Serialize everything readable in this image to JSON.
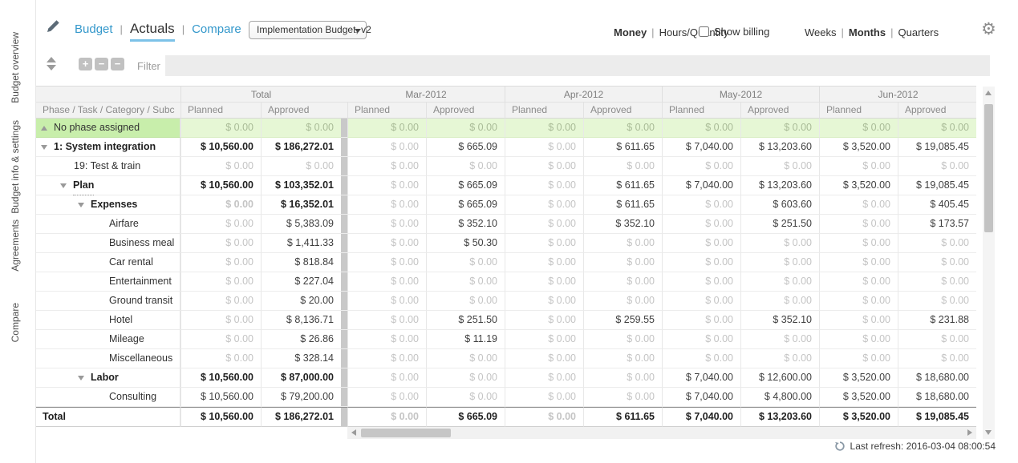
{
  "sidebar": {
    "items": [
      {
        "label": "Budget overview"
      },
      {
        "label": "Budget info & settings"
      },
      {
        "label": "Agreements"
      },
      {
        "label": "Compare"
      }
    ]
  },
  "topbar": {
    "separator": "|",
    "tabs": [
      {
        "label": "Budget",
        "active": false
      },
      {
        "label": "Actuals",
        "active": true
      },
      {
        "label": "Compare",
        "active": false
      }
    ],
    "budget_select": {
      "value": "Implementation Budget, v2"
    },
    "unit_toggle": [
      {
        "label": "Money",
        "active": true
      },
      {
        "label": "Hours/Quantity",
        "active": false
      }
    ],
    "show_billing": {
      "label": "Show billing",
      "checked": false
    },
    "period_toggle": [
      {
        "label": "Weeks",
        "active": false
      },
      {
        "label": "Months",
        "active": true
      },
      {
        "label": "Quarters",
        "active": false
      }
    ]
  },
  "toolbar": {
    "expand_buttons": [
      "+",
      "−",
      "−"
    ],
    "filter_label": "Filter",
    "filter_value": ""
  },
  "table": {
    "name_header": "Phase / Task / Category / Subc",
    "total_group": "Total",
    "month_groups": [
      "Mar-2012",
      "Apr-2012",
      "May-2012",
      "Jun-2012"
    ],
    "value_headers": [
      "Planned",
      "Approved"
    ],
    "rows": [
      {
        "name": "No phase assigned",
        "level": 0,
        "expander": "up",
        "bold": false,
        "green": true,
        "underline": false,
        "total": [
          "$ 0.00",
          "$ 0.00"
        ],
        "months": [
          [
            "$ 0.00",
            "$ 0.00"
          ],
          [
            "$ 0.00",
            "$ 0.00"
          ],
          [
            "$ 0.00",
            "$ 0.00"
          ],
          [
            "$ 0.00",
            "$ 0.00"
          ]
        ]
      },
      {
        "name": "1: System integration",
        "level": 0,
        "expander": "down",
        "bold": true,
        "green": false,
        "underline": false,
        "total": [
          "$ 10,560.00",
          "$ 186,272.01"
        ],
        "months": [
          [
            "$ 0.00",
            "$ 665.09"
          ],
          [
            "$ 0.00",
            "$ 611.65"
          ],
          [
            "$ 7,040.00",
            "$ 13,203.60"
          ],
          [
            "$ 3,520.00",
            "$ 19,085.45"
          ]
        ]
      },
      {
        "name": "19: Test & train",
        "level": 1,
        "expander": null,
        "bold": false,
        "green": false,
        "underline": false,
        "total": [
          "$ 0.00",
          "$ 0.00"
        ],
        "months": [
          [
            "$ 0.00",
            "$ 0.00"
          ],
          [
            "$ 0.00",
            "$ 0.00"
          ],
          [
            "$ 0.00",
            "$ 0.00"
          ],
          [
            "$ 0.00",
            "$ 0.00"
          ]
        ]
      },
      {
        "name": "Plan",
        "level": 1,
        "expander": "down",
        "bold": true,
        "green": false,
        "underline": true,
        "total": [
          "$ 10,560.00",
          "$ 103,352.01"
        ],
        "months": [
          [
            "$ 0.00",
            "$ 665.09"
          ],
          [
            "$ 0.00",
            "$ 611.65"
          ],
          [
            "$ 7,040.00",
            "$ 13,203.60"
          ],
          [
            "$ 3,520.00",
            "$ 19,085.45"
          ]
        ]
      },
      {
        "name": "Expenses",
        "level": 2,
        "expander": "down",
        "bold": true,
        "green": false,
        "underline": false,
        "total": [
          "$ 0.00",
          "$ 16,352.01"
        ],
        "months": [
          [
            "$ 0.00",
            "$ 665.09"
          ],
          [
            "$ 0.00",
            "$ 611.65"
          ],
          [
            "$ 0.00",
            "$ 603.60"
          ],
          [
            "$ 0.00",
            "$ 405.45"
          ]
        ]
      },
      {
        "name": "Airfare",
        "level": 3,
        "expander": null,
        "bold": false,
        "green": false,
        "underline": false,
        "total": [
          "$ 0.00",
          "$ 5,383.09"
        ],
        "months": [
          [
            "$ 0.00",
            "$ 352.10"
          ],
          [
            "$ 0.00",
            "$ 352.10"
          ],
          [
            "$ 0.00",
            "$ 251.50"
          ],
          [
            "$ 0.00",
            "$ 173.57"
          ]
        ]
      },
      {
        "name": "Business meal",
        "level": 3,
        "expander": null,
        "bold": false,
        "green": false,
        "underline": false,
        "total": [
          "$ 0.00",
          "$ 1,411.33"
        ],
        "months": [
          [
            "$ 0.00",
            "$ 50.30"
          ],
          [
            "$ 0.00",
            "$ 0.00"
          ],
          [
            "$ 0.00",
            "$ 0.00"
          ],
          [
            "$ 0.00",
            "$ 0.00"
          ]
        ]
      },
      {
        "name": "Car rental",
        "level": 3,
        "expander": null,
        "bold": false,
        "green": false,
        "underline": false,
        "total": [
          "$ 0.00",
          "$ 818.84"
        ],
        "months": [
          [
            "$ 0.00",
            "$ 0.00"
          ],
          [
            "$ 0.00",
            "$ 0.00"
          ],
          [
            "$ 0.00",
            "$ 0.00"
          ],
          [
            "$ 0.00",
            "$ 0.00"
          ]
        ]
      },
      {
        "name": "Entertainment",
        "level": 3,
        "expander": null,
        "bold": false,
        "green": false,
        "underline": false,
        "total": [
          "$ 0.00",
          "$ 227.04"
        ],
        "months": [
          [
            "$ 0.00",
            "$ 0.00"
          ],
          [
            "$ 0.00",
            "$ 0.00"
          ],
          [
            "$ 0.00",
            "$ 0.00"
          ],
          [
            "$ 0.00",
            "$ 0.00"
          ]
        ]
      },
      {
        "name": "Ground transit",
        "level": 3,
        "expander": null,
        "bold": false,
        "green": false,
        "underline": false,
        "total": [
          "$ 0.00",
          "$ 20.00"
        ],
        "months": [
          [
            "$ 0.00",
            "$ 0.00"
          ],
          [
            "$ 0.00",
            "$ 0.00"
          ],
          [
            "$ 0.00",
            "$ 0.00"
          ],
          [
            "$ 0.00",
            "$ 0.00"
          ]
        ]
      },
      {
        "name": "Hotel",
        "level": 3,
        "expander": null,
        "bold": false,
        "green": false,
        "underline": false,
        "total": [
          "$ 0.00",
          "$ 8,136.71"
        ],
        "months": [
          [
            "$ 0.00",
            "$ 251.50"
          ],
          [
            "$ 0.00",
            "$ 259.55"
          ],
          [
            "$ 0.00",
            "$ 352.10"
          ],
          [
            "$ 0.00",
            "$ 231.88"
          ]
        ]
      },
      {
        "name": "Mileage",
        "level": 3,
        "expander": null,
        "bold": false,
        "green": false,
        "underline": false,
        "total": [
          "$ 0.00",
          "$ 26.86"
        ],
        "months": [
          [
            "$ 0.00",
            "$ 11.19"
          ],
          [
            "$ 0.00",
            "$ 0.00"
          ],
          [
            "$ 0.00",
            "$ 0.00"
          ],
          [
            "$ 0.00",
            "$ 0.00"
          ]
        ]
      },
      {
        "name": "Miscellaneous",
        "level": 3,
        "expander": null,
        "bold": false,
        "green": false,
        "underline": false,
        "total": [
          "$ 0.00",
          "$ 328.14"
        ],
        "months": [
          [
            "$ 0.00",
            "$ 0.00"
          ],
          [
            "$ 0.00",
            "$ 0.00"
          ],
          [
            "$ 0.00",
            "$ 0.00"
          ],
          [
            "$ 0.00",
            "$ 0.00"
          ]
        ]
      },
      {
        "name": "Labor",
        "level": 2,
        "expander": "down",
        "bold": true,
        "green": false,
        "underline": false,
        "total": [
          "$ 10,560.00",
          "$ 87,000.00"
        ],
        "months": [
          [
            "$ 0.00",
            "$ 0.00"
          ],
          [
            "$ 0.00",
            "$ 0.00"
          ],
          [
            "$ 7,040.00",
            "$ 12,600.00"
          ],
          [
            "$ 3,520.00",
            "$ 18,680.00"
          ]
        ]
      },
      {
        "name": "Consulting",
        "level": 3,
        "expander": null,
        "bold": false,
        "green": false,
        "underline": false,
        "total": [
          "$ 10,560.00",
          "$ 79,200.00"
        ],
        "months": [
          [
            "$ 0.00",
            "$ 0.00"
          ],
          [
            "$ 0.00",
            "$ 0.00"
          ],
          [
            "$ 7,040.00",
            "$ 4,800.00"
          ],
          [
            "$ 3,520.00",
            "$ 18,680.00"
          ]
        ]
      }
    ],
    "footer": {
      "name": "Total",
      "total": [
        "$ 10,560.00",
        "$ 186,272.01"
      ],
      "months": [
        [
          "$ 0.00",
          "$ 665.09"
        ],
        [
          "$ 0.00",
          "$ 611.65"
        ],
        [
          "$ 7,040.00",
          "$ 13,203.60"
        ],
        [
          "$ 3,520.00",
          "$ 19,085.45"
        ]
      ]
    },
    "zero_display": "$ 0.00"
  },
  "statusbar": {
    "last_refresh": "Last refresh: 2016-03-04 08:00:54"
  }
}
